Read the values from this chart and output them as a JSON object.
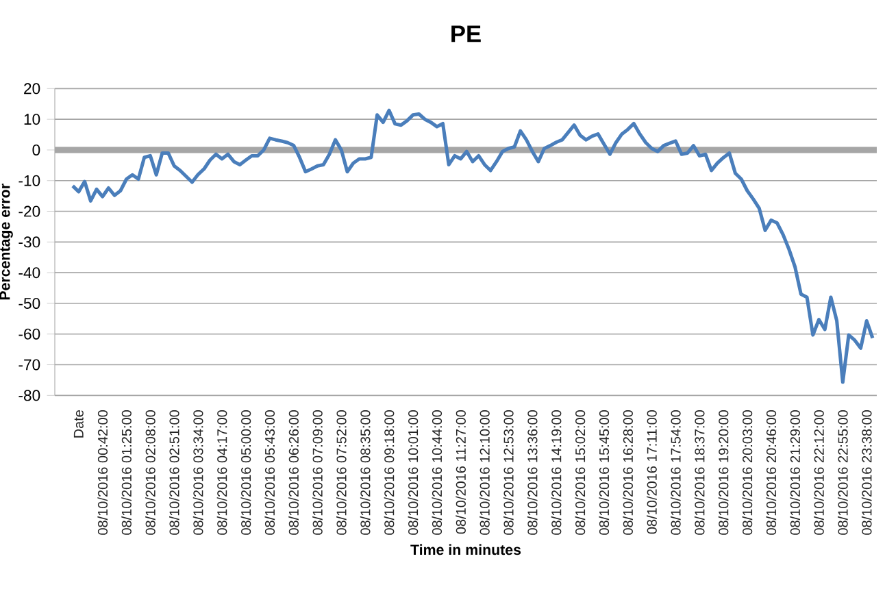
{
  "chart_data": {
    "type": "line",
    "title": "PE",
    "xlabel": "Time in minutes",
    "ylabel": "Percentage error",
    "categories": [
      null,
      null,
      null,
      null,
      "Date",
      null,
      null,
      null,
      "08/10/2016 00:42:00",
      null,
      null,
      null,
      "08/10/2016 01:25:00",
      null,
      null,
      null,
      "08/10/2016 02:08:00",
      null,
      null,
      null,
      "08/10/2016 02:51:00",
      null,
      null,
      null,
      "08/10/2016 03:34:00",
      null,
      null,
      null,
      "08/10/2016 04:17:00",
      null,
      null,
      null,
      "08/10/2016 05:00:00",
      null,
      null,
      null,
      "08/10/2016 05:43:00",
      null,
      null,
      null,
      "08/10/2016 06:26:00",
      null,
      null,
      null,
      "08/10/2016 07:09:00",
      null,
      null,
      null,
      "08/10/2016 07:52:00",
      null,
      null,
      null,
      "08/10/2016 08:35:00",
      null,
      null,
      null,
      "08/10/2016 09:18:00",
      null,
      null,
      null,
      "08/10/2016 10:01:00",
      null,
      null,
      null,
      "08/10/2016 10:44:00",
      null,
      null,
      null,
      "08/10/2016 11:27:00",
      null,
      null,
      null,
      "08/10/2016 12:10:00",
      null,
      null,
      null,
      "08/10/2016 12:53:00",
      null,
      null,
      null,
      "08/10/2016 13:36:00",
      null,
      null,
      null,
      "08/10/2016 14:19:00",
      null,
      null,
      null,
      "08/10/2016 15:02:00",
      null,
      null,
      null,
      "08/10/2016 15:45:00",
      null,
      null,
      null,
      "08/10/2016 16:28:00",
      null,
      null,
      null,
      "08/10/2016 17:11:00",
      null,
      null,
      null,
      "08/10/2016 17:54:00",
      null,
      null,
      null,
      "08/10/2016 18:37:00",
      null,
      null,
      null,
      "08/10/2016 19:20:00",
      null,
      null,
      null,
      "08/10/2016 20:03:00",
      null,
      null,
      null,
      "08/10/2016 20:46:00",
      null,
      null,
      null,
      "08/10/2016 21:29:00",
      null,
      null,
      null,
      "08/10/2016 22:12:00",
      null,
      null,
      null,
      "08/10/2016 22:55:00",
      null,
      null,
      null,
      "08/10/2016 23:38:00",
      null
    ],
    "series": [
      {
        "color": "#4a7ebb",
        "values": [
          null,
          null,
          null,
          -11.7,
          -13.6,
          -10.3,
          -16.6,
          -12.8,
          -15.2,
          -12.4,
          -14.8,
          -13.3,
          -9.5,
          -8.1,
          -9.5,
          -2.4,
          -1.9,
          -8.1,
          -1,
          -1,
          -5.2,
          -6.7,
          -8.6,
          -10.5,
          -8,
          -6.2,
          -3.3,
          -1.4,
          -2.9,
          -1.4,
          -3.8,
          -4.8,
          -3.3,
          -1.9,
          -1.9,
          0,
          3.8,
          3.3,
          2.9,
          2.4,
          1.5,
          -2.4,
          -7.1,
          -6.2,
          -5.2,
          -4.8,
          -1.4,
          3.3,
          0,
          -7.1,
          -4.3,
          -2.9,
          -2.9,
          -2.4,
          11.4,
          9,
          12.9,
          8.5,
          8.1,
          9.5,
          11.4,
          11.7,
          10,
          9,
          7.6,
          8.6,
          -4.8,
          -1.9,
          -2.9,
          -0.5,
          -3.8,
          -1.9,
          -4.8,
          -6.7,
          -3.8,
          -0.5,
          0.5,
          1,
          6.2,
          3.3,
          -0.5,
          -3.8,
          0.5,
          1.4,
          2.5,
          3.3,
          5.7,
          8.1,
          4.8,
          3.3,
          4.5,
          5.2,
          1.9,
          -1.4,
          2.4,
          5.2,
          6.7,
          8.6,
          5.2,
          2.4,
          0.5,
          -0.5,
          1.4,
          2.2,
          2.9,
          -1.4,
          -1,
          1.4,
          -1.9,
          -1.4,
          -6.7,
          -4.3,
          -2.5,
          -1,
          -7.6,
          -9.5,
          -13.3,
          -16,
          -19,
          -26.2,
          -22.9,
          -23.8,
          -27.6,
          -32.4,
          -38.1,
          -47,
          -48,
          -60.3,
          -55.3,
          -58.5,
          -48,
          -55.7,
          -75.7,
          -60.3,
          -62,
          -64.6,
          -55.7,
          -61.3
        ]
      }
    ],
    "ylim": [
      -80,
      20
    ],
    "yticks": [
      -80,
      -70,
      -60,
      -50,
      -40,
      -30,
      -20,
      -10,
      0,
      10,
      20
    ],
    "ref_lines": [
      {
        "axis": "y",
        "value": 0,
        "color": "#a6a6a6"
      }
    ],
    "grid": "y"
  }
}
